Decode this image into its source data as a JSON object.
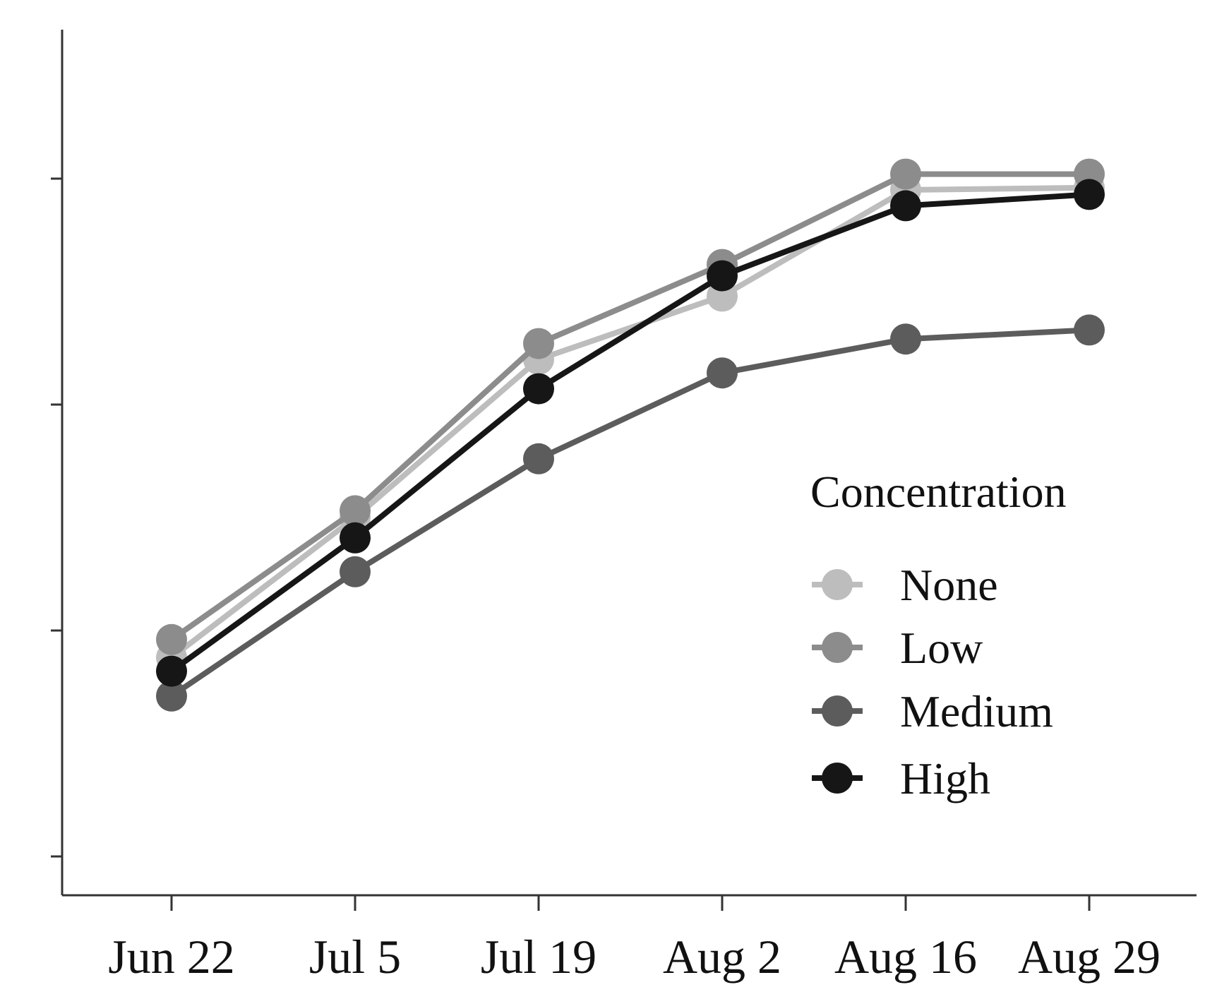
{
  "chart_data": {
    "type": "line",
    "categories": [
      "Jun 22",
      "Jul 5",
      "Jul 19",
      "Aug 2",
      "Aug 16",
      "Aug 29"
    ],
    "ylim": [
      0,
      4
    ],
    "yticks": [
      0.5,
      1.5,
      2.5,
      3.5
    ],
    "ytick_labels_visible": false,
    "grid": false,
    "legend": {
      "title": "Concentration",
      "placement": "right"
    },
    "series": [
      {
        "name": "None",
        "color": "#bdbdbd",
        "values": [
          1.38,
          2.0,
          2.7,
          2.98,
          3.45,
          3.46
        ]
      },
      {
        "name": "Low",
        "color": "#8c8c8c",
        "values": [
          1.46,
          2.03,
          2.77,
          3.12,
          3.52,
          3.52
        ]
      },
      {
        "name": "Medium",
        "color": "#5c5c5c",
        "values": [
          1.21,
          1.76,
          2.26,
          2.64,
          2.79,
          2.83
        ]
      },
      {
        "name": "High",
        "color": "#161616",
        "values": [
          1.32,
          1.91,
          2.57,
          3.07,
          3.38,
          3.43
        ]
      }
    ]
  }
}
